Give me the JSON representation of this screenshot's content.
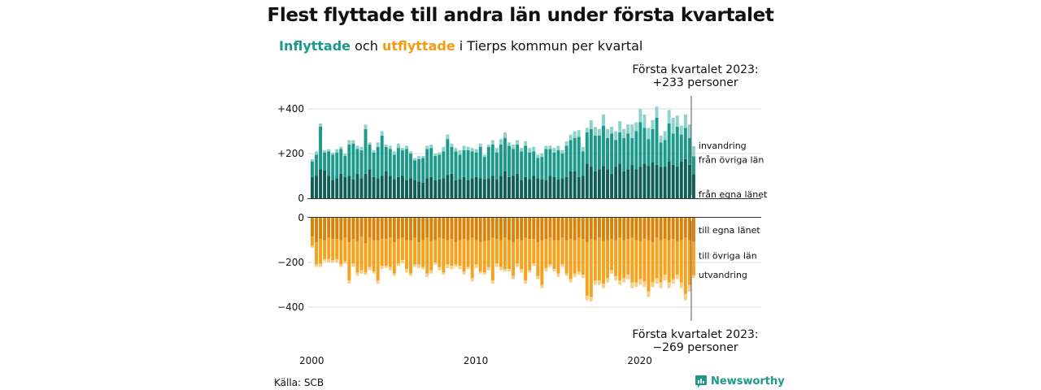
{
  "title": "Flest flyttade till andra län under första kvartalet",
  "subtitle": {
    "part1": "Inflyttade",
    "part2": " och ",
    "part3": "utflyttade",
    "part4": " i Tierps kommun per kvartal"
  },
  "annotation_top": {
    "line1": "Första kvartalet 2023:",
    "line2": "+233 personer"
  },
  "annotation_bottom": {
    "line1": "Första kvartalet 2023:",
    "line2": "−269 personer"
  },
  "source": "Källa: SCB",
  "brand": "Newsworthy",
  "colors": {
    "in_egna": "#0e5f55",
    "in_ovriga": "#1b9a8a",
    "in_invandring": "#8dd3cb",
    "ut_egna": "#d98408",
    "ut_ovriga": "#f6a21c",
    "ut_utvandring": "#f9cf87"
  },
  "chart_data": {
    "type": "bar",
    "stacked": true,
    "x_axis": {
      "type": "time",
      "start": "2000 Q1",
      "end": "2023 Q1",
      "ticks": [
        "2000",
        "2010",
        "2020"
      ]
    },
    "panels": [
      {
        "name": "inflyttade",
        "yticks": [
          "+400",
          "+200",
          "0"
        ],
        "ylim": [
          0,
          420
        ],
        "series": [
          {
            "name": "från egna länet",
            "values": [
              95,
              100,
              130,
              125,
              100,
              80,
              90,
              110,
              95,
              100,
              85,
              110,
              90,
              110,
              130,
              95,
              90,
              100,
              120,
              100,
              85,
              95,
              100,
              80,
              90,
              80,
              75,
              70,
              90,
              95,
              80,
              85,
              90,
              105,
              110,
              80,
              85,
              95,
              80,
              90,
              95,
              90,
              85,
              90,
              100,
              85,
              100,
              120,
              95,
              100,
              110,
              80,
              95,
              85,
              100,
              90,
              85,
              80,
              100,
              95,
              85,
              90,
              95,
              120,
              120,
              95,
              100,
              155,
              140,
              120,
              130,
              145,
              130,
              110,
              140,
              155,
              120,
              130,
              150,
              130,
              140,
              155,
              145,
              160,
              150,
              140,
              140,
              165,
              150,
              140,
              165,
              175,
              150,
              108
            ]
          },
          {
            "name": "från övriga län",
            "values": [
              70,
              95,
              190,
              80,
              110,
              115,
              115,
              110,
              95,
              140,
              160,
              110,
              125,
              200,
              110,
              110,
              140,
              180,
              110,
              120,
              110,
              130,
              115,
              140,
              110,
              90,
              100,
              110,
              130,
              130,
              110,
              110,
              120,
              160,
              120,
              130,
              110,
              120,
              135,
              120,
              110,
              140,
              100,
              140,
              140,
              120,
              140,
              150,
              140,
              120,
              130,
              130,
              140,
              120,
              110,
              90,
              100,
              140,
              120,
              110,
              130,
              110,
              140,
              140,
              150,
              180,
              110,
              140,
              170,
              160,
              150,
              180,
              140,
              180,
              120,
              140,
              150,
              160,
              120,
              170,
              200,
              160,
              120,
              150,
              210,
              110,
              120,
              170,
              140,
              180,
              120,
              140,
              120,
              80
            ]
          },
          {
            "name": "invandring",
            "values": [
              10,
              15,
              15,
              10,
              10,
              10,
              15,
              10,
              10,
              20,
              15,
              15,
              15,
              20,
              10,
              10,
              20,
              20,
              10,
              15,
              15,
              20,
              10,
              15,
              10,
              10,
              15,
              10,
              15,
              15,
              10,
              10,
              20,
              20,
              15,
              15,
              20,
              20,
              15,
              15,
              15,
              15,
              10,
              10,
              20,
              20,
              25,
              25,
              15,
              20,
              20,
              15,
              20,
              20,
              20,
              15,
              15,
              15,
              15,
              20,
              20,
              15,
              20,
              25,
              30,
              30,
              20,
              20,
              40,
              40,
              30,
              50,
              40,
              30,
              40,
              50,
              40,
              40,
              60,
              40,
              60,
              60,
              50,
              40,
              50,
              30,
              40,
              60,
              70,
              50,
              40,
              60,
              60,
              45
            ]
          }
        ]
      },
      {
        "name": "utflyttade",
        "yticks": [
          "0",
          "−200",
          "−400"
        ],
        "ylim": [
          -420,
          0
        ],
        "series": [
          {
            "name": "till egna länet",
            "values": [
              -85,
              -110,
              -95,
              -100,
              -90,
              -95,
              -95,
              -100,
              -90,
              -110,
              -95,
              -105,
              -85,
              -115,
              -90,
              -100,
              -100,
              -95,
              -95,
              -90,
              -110,
              -95,
              -90,
              -100,
              -100,
              -90,
              -110,
              -100,
              -90,
              -105,
              -100,
              -90,
              -95,
              -100,
              -95,
              -110,
              -100,
              -95,
              -100,
              -90,
              -100,
              -110,
              -105,
              -100,
              -90,
              -95,
              -100,
              -90,
              -100,
              -110,
              -95,
              -100,
              -90,
              -95,
              -95,
              -110,
              -100,
              -95,
              -90,
              -100,
              -100,
              -90,
              -100,
              -95,
              -100,
              -90,
              -95,
              -110,
              -95,
              -100,
              -90,
              -105,
              -100,
              -95,
              -100,
              -90,
              -100,
              -95,
              -90,
              -100,
              -105,
              -95,
              -100,
              -110,
              -90,
              -100,
              -95,
              -100,
              -95,
              -105,
              -100,
              -90,
              -100,
              -108
            ]
          },
          {
            "name": "till övriga län",
            "values": [
              -40,
              -100,
              -110,
              -85,
              -95,
              -95,
              -90,
              -110,
              -105,
              -170,
              -110,
              -140,
              -150,
              -130,
              -130,
              -140,
              -180,
              -120,
              -120,
              -130,
              -140,
              -110,
              -100,
              -130,
              -150,
              -120,
              -100,
              -120,
              -160,
              -130,
              -100,
              -130,
              -150,
              -110,
              -120,
              -100,
              -115,
              -145,
              -120,
              -180,
              -110,
              -130,
              -140,
              -120,
              -190,
              -110,
              -120,
              -140,
              -130,
              -150,
              -110,
              -130,
              -190,
              -140,
              -110,
              -150,
              -200,
              -130,
              -120,
              -130,
              -150,
              -120,
              -150,
              -180,
              -150,
              -150,
              -160,
              -240,
              -260,
              -180,
              -190,
              -190,
              -170,
              -140,
              -160,
              -190,
              -170,
              -160,
              -200,
              -190,
              -170,
              -190,
              -230,
              -180,
              -180,
              -190,
              -160,
              -190,
              -180,
              -150,
              -190,
              -250,
              -200,
              -150
            ]
          },
          {
            "name": "utvandring",
            "values": [
              -10,
              -10,
              -15,
              -10,
              -15,
              -10,
              -15,
              -10,
              -10,
              -15,
              -15,
              -15,
              -15,
              -10,
              -15,
              -10,
              -15,
              -15,
              -10,
              -15,
              -10,
              -10,
              -15,
              -15,
              -10,
              -10,
              -15,
              -10,
              -15,
              -15,
              -10,
              -15,
              -10,
              -15,
              -15,
              -10,
              -15,
              -15,
              -10,
              -15,
              -15,
              -10,
              -10,
              -15,
              -15,
              -15,
              -15,
              -10,
              -10,
              -15,
              -15,
              -15,
              -15,
              -10,
              -10,
              -15,
              -15,
              -15,
              -10,
              -10,
              -15,
              -10,
              -10,
              -15,
              -15,
              -15,
              -15,
              -20,
              -20,
              -20,
              -20,
              -20,
              -20,
              -15,
              -20,
              -20,
              -20,
              -20,
              -25,
              -20,
              -25,
              -25,
              -25,
              -20,
              -25,
              -25,
              -25,
              -25,
              -20,
              -20,
              -25,
              -30,
              -30,
              -11
            ]
          }
        ]
      }
    ],
    "legend_labels_in": [
      "invandring",
      "från övriga län",
      "från egna länet"
    ],
    "legend_labels_ut": [
      "till egna länet",
      "till övriga län",
      "utvandring"
    ]
  }
}
